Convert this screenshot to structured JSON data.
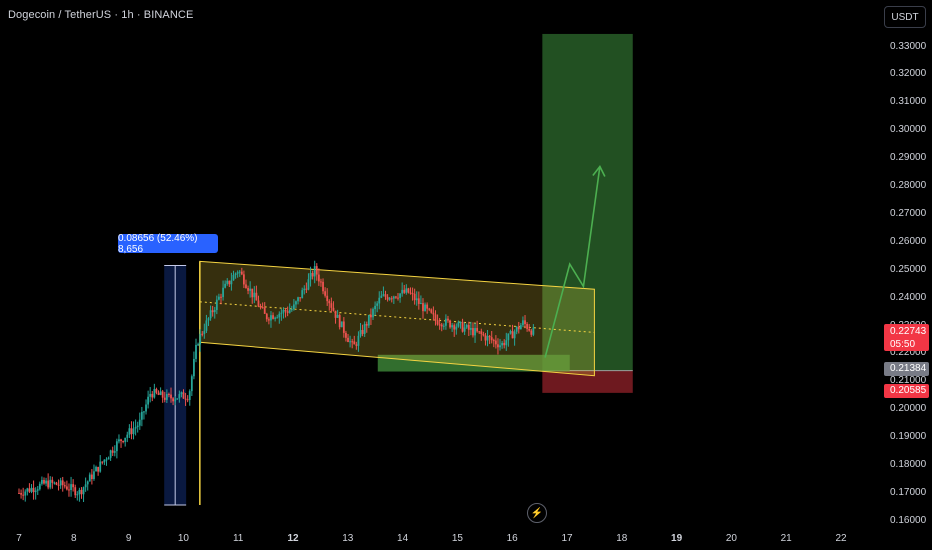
{
  "header": {
    "title": "Dogecoin / TetherUS · 1h · BINANCE"
  },
  "axis": {
    "currency_button": "USDT"
  },
  "y_ticks": [
    "0.33000",
    "0.32000",
    "0.31000",
    "0.30000",
    "0.29000",
    "0.28000",
    "0.27000",
    "0.26000",
    "0.25000",
    "0.24000",
    "0.23000",
    "0.22000",
    "0.21000",
    "0.20000",
    "0.19000",
    "0.18000",
    "0.17000",
    "0.16000"
  ],
  "x_ticks": [
    {
      "label": "7",
      "bold": false
    },
    {
      "label": "8",
      "bold": false
    },
    {
      "label": "9",
      "bold": false
    },
    {
      "label": "10",
      "bold": false
    },
    {
      "label": "11",
      "bold": false
    },
    {
      "label": "12",
      "bold": true
    },
    {
      "label": "13",
      "bold": false
    },
    {
      "label": "14",
      "bold": false
    },
    {
      "label": "15",
      "bold": false
    },
    {
      "label": "16",
      "bold": false
    },
    {
      "label": "17",
      "bold": false
    },
    {
      "label": "18",
      "bold": false
    },
    {
      "label": "19",
      "bold": true
    },
    {
      "label": "20",
      "bold": false
    },
    {
      "label": "21",
      "bold": false
    },
    {
      "label": "22",
      "bold": false
    }
  ],
  "price_tags": {
    "current": {
      "price": "0.22743",
      "countdown": "05:50",
      "color": "#f23645"
    },
    "entry": {
      "price": "0.21384",
      "color": "#787b86"
    },
    "stop": {
      "price": "0.20585",
      "color": "#f23645"
    }
  },
  "measure_label": "0.08656 (52.46%) 8,656",
  "colors": {
    "up": "#26a69a",
    "down": "#ef5350",
    "channel": "#f5d442",
    "target_zone": "#2e6b2e",
    "stop_zone": "#7a1c22",
    "arrow": "#4caf50",
    "measure": "#2962ff"
  },
  "chart_data": {
    "type": "candlestick",
    "title": "Dogecoin / TetherUS · 1h · BINANCE",
    "xlabel": "",
    "ylabel": "",
    "x_range": [
      "7",
      "22"
    ],
    "ylim": [
      0.16,
      0.335
    ],
    "close_path": [
      {
        "x": "7.0",
        "close": 0.17
      },
      {
        "x": "7.5",
        "close": 0.1735
      },
      {
        "x": "7.8",
        "close": 0.1728
      },
      {
        "x": "8.1",
        "close": 0.1702
      },
      {
        "x": "8.4",
        "close": 0.178
      },
      {
        "x": "8.8",
        "close": 0.188
      },
      {
        "x": "9.2",
        "close": 0.195
      },
      {
        "x": "9.4",
        "close": 0.206
      },
      {
        "x": "9.7",
        "close": 0.204
      },
      {
        "x": "10.1",
        "close": 0.205
      },
      {
        "x": "10.25",
        "close": 0.224
      },
      {
        "x": "10.7",
        "close": 0.242
      },
      {
        "x": "11.0",
        "close": 0.25
      },
      {
        "x": "11.5",
        "close": 0.233
      },
      {
        "x": "12.0",
        "close": 0.236
      },
      {
        "x": "12.4",
        "close": 0.25
      },
      {
        "x": "12.8",
        "close": 0.233
      },
      {
        "x": "13.1",
        "close": 0.222
      },
      {
        "x": "13.6",
        "close": 0.24
      },
      {
        "x": "14.1",
        "close": 0.242
      },
      {
        "x": "14.6",
        "close": 0.232
      },
      {
        "x": "15.0",
        "close": 0.23
      },
      {
        "x": "15.4",
        "close": 0.227
      },
      {
        "x": "15.8",
        "close": 0.223
      },
      {
        "x": "16.2",
        "close": 0.231
      },
      {
        "x": "16.4",
        "close": 0.2274
      }
    ],
    "measure": {
      "change": 0.08656,
      "percent": 52.46,
      "bars": 8656
    },
    "position": {
      "entry": 0.21384,
      "stop": 0.20585,
      "target_top": 0.3345
    },
    "channel": {
      "upper": [
        0.253,
        0.243
      ],
      "lower": [
        0.224,
        0.212
      ]
    }
  }
}
